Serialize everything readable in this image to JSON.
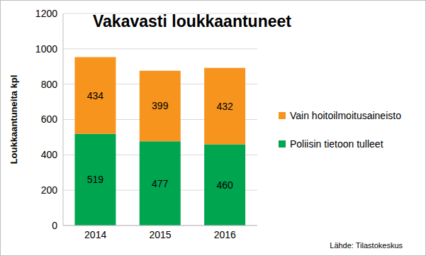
{
  "chart_data": {
    "type": "bar",
    "title": "Vakavasti loukkaantuneet",
    "y_label": "Loukkaantuneita kpl",
    "annotation": "Lähde: Tilastokeskus",
    "categories": [
      "2014",
      "2015",
      "2016"
    ],
    "series": [
      {
        "name": "Poliisin tietoon tulleet",
        "color": "#00a550",
        "values": [
          519,
          477,
          460
        ]
      },
      {
        "name": "Vain hoitoilmoitusaineisto",
        "color": "#f7941d",
        "values": [
          434,
          399,
          432
        ]
      }
    ],
    "stacked": true,
    "data_labels": true,
    "ylim": [
      0,
      1200
    ],
    "yticks": [
      0,
      200,
      400,
      600,
      800,
      1000,
      1200
    ],
    "grid": true,
    "legend": "right"
  }
}
